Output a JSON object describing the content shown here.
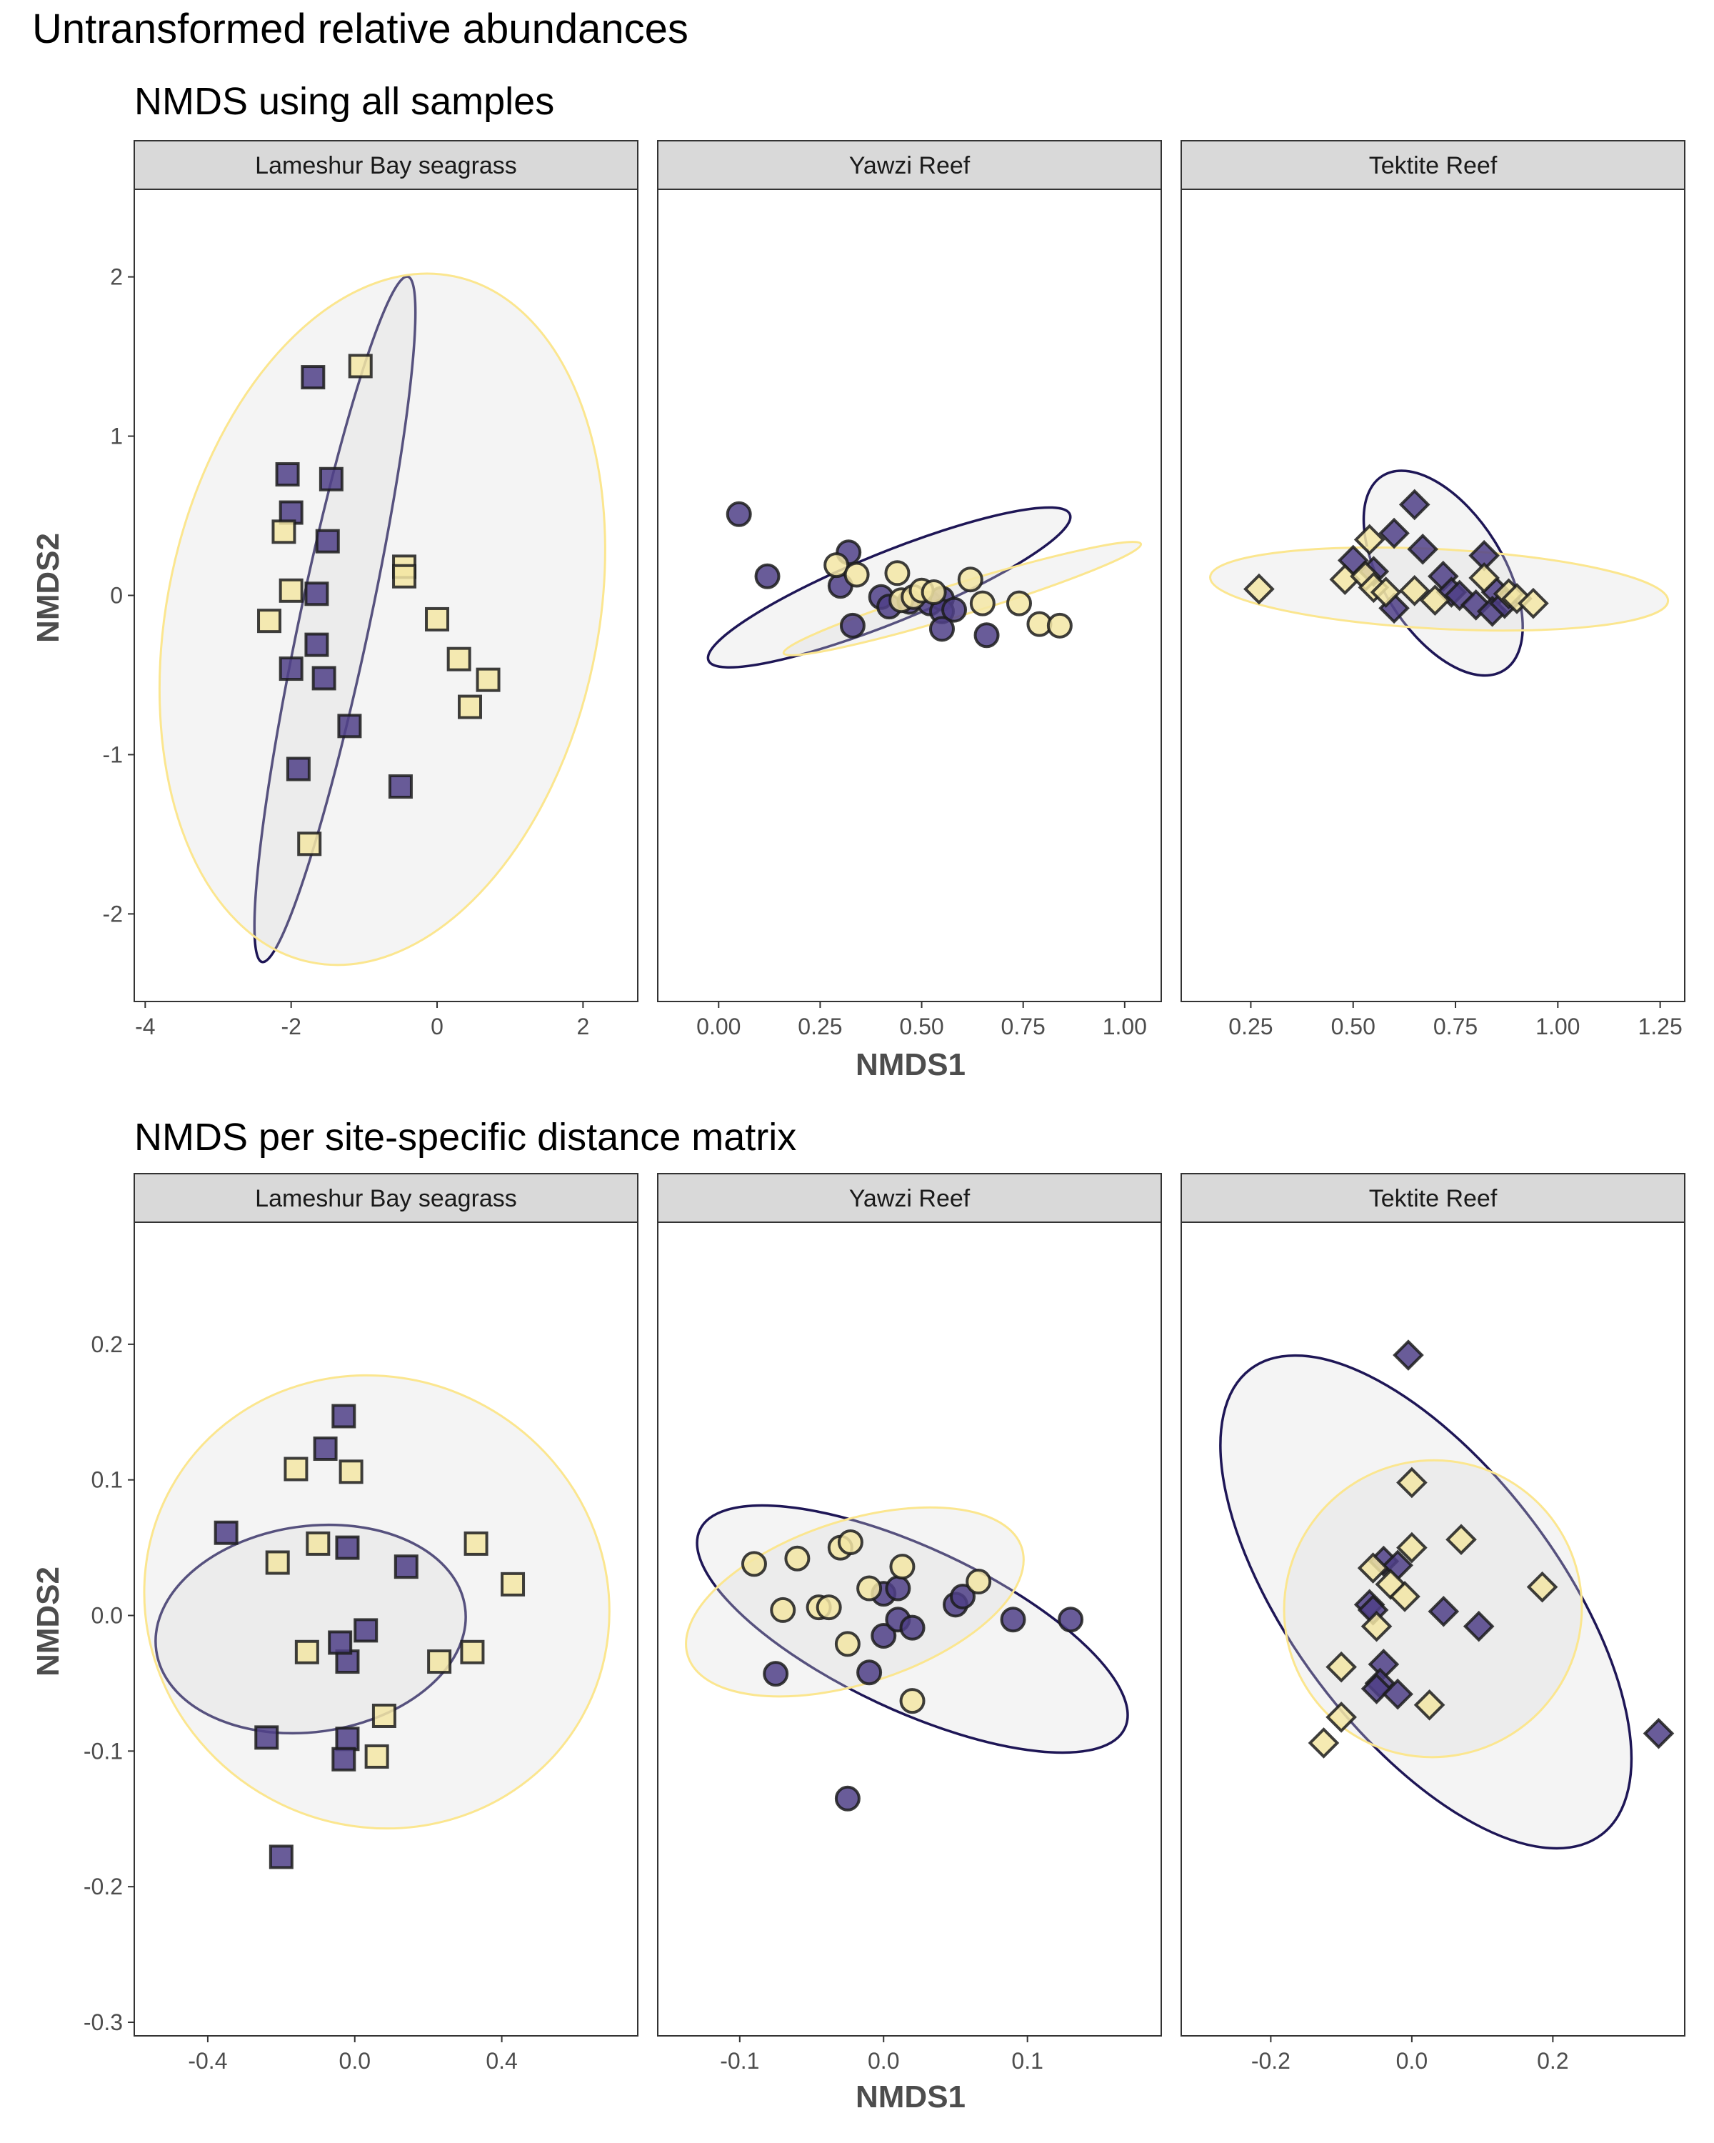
{
  "title": "Untransformed relative abundances",
  "colors": {
    "group_dark": "#1e1656",
    "group_dark_fill": "#4f4087",
    "group_light": "#fbe68f",
    "group_light_fill": "#f3e6a4",
    "ellipse_fill": "#d9d9d9",
    "strip_bg": "#d9d9d9",
    "panel_border": "#333333"
  },
  "sections": [
    {
      "subtitle": "NMDS using all samples",
      "xlabel": "NMDS1",
      "ylabel": "NMDS2",
      "ylim": [
        -2.55,
        2.55
      ],
      "yticks": [
        2,
        1,
        0,
        -1,
        -2
      ],
      "ytick_labels": [
        "2",
        "1",
        "0",
        "-1",
        "-2"
      ]
    },
    {
      "subtitle": "NMDS per site-specific distance matrix",
      "xlabel": "NMDS1",
      "ylabel": "NMDS2",
      "ylim": [
        -0.31,
        0.29
      ],
      "yticks": [
        0.2,
        0.1,
        0.0,
        -0.1,
        -0.2,
        -0.3
      ],
      "ytick_labels": [
        "0.2",
        "0.1",
        "0.0",
        "-0.1",
        "-0.2",
        "-0.3"
      ]
    }
  ],
  "chart_data": [
    {
      "type": "scatter",
      "section": 0,
      "facet": "Lameshur Bay seagrass",
      "shape": "square",
      "xlim": [
        -4.15,
        2.75
      ],
      "xticks": [
        -4,
        -2,
        0,
        2
      ],
      "xtick_labels": [
        "-4",
        "-2",
        "0",
        "2"
      ],
      "series": [
        {
          "group": "dark",
          "points": [
            [
              -1.7,
              1.37
            ],
            [
              -2.05,
              0.76
            ],
            [
              -2.0,
              0.52
            ],
            [
              -1.45,
              0.73
            ],
            [
              -1.5,
              0.34
            ],
            [
              -1.65,
              0.01
            ],
            [
              -1.65,
              -0.31
            ],
            [
              -1.55,
              -0.52
            ],
            [
              -2.0,
              -0.46
            ],
            [
              -1.2,
              -0.82
            ],
            [
              -1.9,
              -1.09
            ],
            [
              -0.5,
              -1.2
            ]
          ]
        },
        {
          "group": "light",
          "points": [
            [
              -1.05,
              1.44
            ],
            [
              -2.1,
              0.4
            ],
            [
              -2.0,
              0.03
            ],
            [
              -2.3,
              -0.16
            ],
            [
              -0.45,
              0.18
            ],
            [
              -0.45,
              0.12
            ],
            [
              0.0,
              -0.15
            ],
            [
              0.3,
              -0.4
            ],
            [
              0.7,
              -0.53
            ],
            [
              0.45,
              -0.7
            ],
            [
              -1.75,
              -1.56
            ]
          ]
        }
      ],
      "ellipses": [
        {
          "group": "dark",
          "cx": -1.4,
          "cy": -0.15,
          "rx": 0.48,
          "ry": 2.2,
          "angle": -12
        },
        {
          "group": "light",
          "cx": -0.75,
          "cy": -0.15,
          "rx": 2.95,
          "ry": 2.2,
          "angle": -12
        }
      ]
    },
    {
      "type": "scatter",
      "section": 0,
      "facet": "Yawzi Reef",
      "shape": "circle",
      "xlim": [
        -0.15,
        1.09
      ],
      "xticks": [
        0.0,
        0.25,
        0.5,
        0.75,
        1.0
      ],
      "xtick_labels": [
        "0.00",
        "0.25",
        "0.50",
        "0.75",
        "1.00"
      ],
      "series": [
        {
          "group": "dark",
          "points": [
            [
              0.05,
              0.51
            ],
            [
              0.12,
              0.12
            ],
            [
              0.3,
              0.06
            ],
            [
              0.32,
              0.27
            ],
            [
              0.4,
              -0.01
            ],
            [
              0.42,
              -0.07
            ],
            [
              0.33,
              -0.19
            ],
            [
              0.47,
              -0.04
            ],
            [
              0.52,
              -0.05
            ],
            [
              0.55,
              -0.02
            ],
            [
              0.55,
              -0.1
            ],
            [
              0.58,
              -0.09
            ],
            [
              0.55,
              -0.21
            ],
            [
              0.66,
              -0.25
            ]
          ]
        },
        {
          "group": "light",
          "points": [
            [
              0.29,
              0.19
            ],
            [
              0.34,
              0.13
            ],
            [
              0.44,
              0.14
            ],
            [
              0.45,
              -0.03
            ],
            [
              0.48,
              -0.01
            ],
            [
              0.5,
              0.03
            ],
            [
              0.53,
              0.02
            ],
            [
              0.62,
              0.1
            ],
            [
              0.65,
              -0.05
            ],
            [
              0.74,
              -0.05
            ],
            [
              0.79,
              -0.18
            ],
            [
              0.84,
              -0.19
            ]
          ]
        }
      ],
      "ellipses": [
        {
          "group": "dark",
          "cx": 0.42,
          "cy": 0.05,
          "rx": 0.48,
          "ry": 0.22,
          "angle": 22
        },
        {
          "group": "light",
          "cx": 0.6,
          "cy": -0.02,
          "rx": 0.46,
          "ry": 0.1,
          "angle": 17
        }
      ]
    },
    {
      "type": "scatter",
      "section": 0,
      "facet": "Tektite Reef",
      "shape": "diamond",
      "xlim": [
        0.08,
        1.31
      ],
      "xticks": [
        0.25,
        0.5,
        0.75,
        1.0,
        1.25
      ],
      "xtick_labels": [
        "0.25",
        "0.50",
        "0.75",
        "1.00",
        "1.25"
      ],
      "series": [
        {
          "group": "dark",
          "points": [
            [
              0.5,
              0.22
            ],
            [
              0.6,
              0.39
            ],
            [
              0.65,
              0.57
            ],
            [
              0.67,
              0.29
            ],
            [
              0.72,
              0.12
            ],
            [
              0.6,
              -0.08
            ],
            [
              0.74,
              0.02
            ],
            [
              0.76,
              0.0
            ],
            [
              0.82,
              0.25
            ],
            [
              0.85,
              0.02
            ],
            [
              0.8,
              -0.06
            ],
            [
              0.84,
              -0.1
            ],
            [
              0.87,
              -0.05
            ],
            [
              0.55,
              0.15
            ]
          ]
        },
        {
          "group": "light",
          "points": [
            [
              0.27,
              0.04
            ],
            [
              0.48,
              0.1
            ],
            [
              0.53,
              0.12
            ],
            [
              0.55,
              0.05
            ],
            [
              0.58,
              0.02
            ],
            [
              0.54,
              0.35
            ],
            [
              0.65,
              0.03
            ],
            [
              0.7,
              -0.03
            ],
            [
              0.82,
              0.11
            ],
            [
              0.88,
              0.01
            ],
            [
              0.9,
              -0.02
            ],
            [
              0.94,
              -0.05
            ]
          ]
        }
      ],
      "ellipses": [
        {
          "group": "dark",
          "cx": 0.72,
          "cy": 0.14,
          "rx": 0.28,
          "ry": 0.38,
          "angle": -58
        },
        {
          "group": "light",
          "cx": 0.71,
          "cy": 0.04,
          "rx": 0.56,
          "ry": 0.25,
          "angle": -3
        }
      ]
    },
    {
      "type": "scatter",
      "section": 1,
      "facet": "Lameshur Bay seagrass",
      "shape": "square",
      "xlim": [
        -0.6,
        0.77
      ],
      "xticks": [
        -0.4,
        0.0,
        0.4
      ],
      "xtick_labels": [
        "-0.4",
        "0.0",
        "0.4"
      ],
      "series": [
        {
          "group": "dark",
          "points": [
            [
              -0.03,
              0.147
            ],
            [
              -0.08,
              0.123
            ],
            [
              -0.35,
              0.061
            ],
            [
              -0.02,
              0.05
            ],
            [
              0.14,
              0.036
            ],
            [
              0.03,
              -0.011
            ],
            [
              -0.02,
              -0.034
            ],
            [
              -0.24,
              -0.09
            ],
            [
              -0.02,
              -0.091
            ],
            [
              -0.03,
              -0.106
            ],
            [
              -0.2,
              -0.178
            ],
            [
              -0.04,
              -0.02
            ]
          ]
        },
        {
          "group": "light",
          "points": [
            [
              -0.16,
              0.108
            ],
            [
              -0.01,
              0.106
            ],
            [
              -0.21,
              0.039
            ],
            [
              -0.1,
              0.053
            ],
            [
              0.33,
              0.053
            ],
            [
              0.43,
              0.023
            ],
            [
              -0.13,
              -0.027
            ],
            [
              0.32,
              -0.027
            ],
            [
              0.23,
              -0.034
            ],
            [
              0.08,
              -0.074
            ],
            [
              0.06,
              -0.104
            ]
          ]
        }
      ],
      "ellipses": [
        {
          "group": "dark",
          "cx": -0.12,
          "cy": -0.01,
          "rx": 0.28,
          "ry": 0.115,
          "angle": -82
        },
        {
          "group": "light",
          "cx": 0.06,
          "cy": 0.01,
          "rx": 0.64,
          "ry": 0.165,
          "angle": -29
        }
      ]
    },
    {
      "type": "scatter",
      "section": 1,
      "facet": "Yawzi Reef",
      "shape": "circle",
      "xlim": [
        -0.157,
        0.193
      ],
      "xticks": [
        -0.1,
        0.0,
        0.1
      ],
      "xtick_labels": [
        "-0.1",
        "0.0",
        "0.1"
      ],
      "series": [
        {
          "group": "dark",
          "points": [
            [
              0.0,
              0.016
            ],
            [
              0.01,
              0.02
            ],
            [
              0.0,
              -0.015
            ],
            [
              0.01,
              -0.003
            ],
            [
              0.02,
              -0.009
            ],
            [
              0.05,
              0.008
            ],
            [
              0.055,
              0.014
            ],
            [
              0.09,
              -0.003
            ],
            [
              0.13,
              -0.003
            ],
            [
              -0.075,
              -0.043
            ],
            [
              -0.01,
              -0.042
            ],
            [
              -0.025,
              -0.135
            ]
          ]
        },
        {
          "group": "light",
          "points": [
            [
              -0.09,
              0.038
            ],
            [
              -0.06,
              0.042
            ],
            [
              -0.03,
              0.05
            ],
            [
              -0.023,
              0.054
            ],
            [
              0.013,
              0.036
            ],
            [
              0.066,
              0.025
            ],
            [
              -0.07,
              0.004
            ],
            [
              -0.045,
              0.006
            ],
            [
              -0.038,
              0.006
            ],
            [
              -0.01,
              0.02
            ],
            [
              -0.025,
              -0.021
            ],
            [
              0.02,
              -0.063
            ]
          ]
        }
      ],
      "ellipses": [
        {
          "group": "dark",
          "cx": 0.02,
          "cy": -0.01,
          "rx": 0.163,
          "ry": 0.06,
          "angle": -25
        },
        {
          "group": "light",
          "cx": -0.02,
          "cy": 0.01,
          "rx": 0.122,
          "ry": 0.06,
          "angle": 18
        }
      ]
    },
    {
      "type": "scatter",
      "section": 1,
      "facet": "Tektite Reef",
      "shape": "diamond",
      "xlim": [
        -0.327,
        0.387
      ],
      "xticks": [
        -0.2,
        0.0,
        0.2
      ],
      "xtick_labels": [
        "-0.2",
        "0.0",
        "0.2"
      ],
      "series": [
        {
          "group": "dark",
          "points": [
            [
              -0.005,
              0.192
            ],
            [
              -0.04,
              0.04
            ],
            [
              -0.02,
              0.037
            ],
            [
              -0.06,
              0.008
            ],
            [
              -0.055,
              0.004
            ],
            [
              0.045,
              0.003
            ],
            [
              0.095,
              -0.008
            ],
            [
              -0.04,
              -0.036
            ],
            [
              -0.045,
              -0.05
            ],
            [
              -0.05,
              -0.054
            ],
            [
              -0.02,
              -0.058
            ],
            [
              0.35,
              -0.087
            ]
          ]
        },
        {
          "group": "light",
          "points": [
            [
              0.0,
              0.098
            ],
            [
              0.0,
              0.05
            ],
            [
              -0.055,
              0.035
            ],
            [
              0.07,
              0.056
            ],
            [
              -0.03,
              0.023
            ],
            [
              -0.01,
              0.014
            ],
            [
              0.185,
              0.021
            ],
            [
              -0.05,
              -0.008
            ],
            [
              -0.1,
              -0.038
            ],
            [
              -0.1,
              -0.075
            ],
            [
              0.025,
              -0.066
            ],
            [
              -0.125,
              -0.094
            ]
          ]
        }
      ],
      "ellipses": [
        {
          "group": "dark",
          "cx": 0.02,
          "cy": 0.01,
          "rx": 0.19,
          "ry": 0.215,
          "angle": 37
        },
        {
          "group": "light",
          "cx": 0.03,
          "cy": 0.005,
          "rx": 0.21,
          "ry": 0.11,
          "angle": -58
        }
      ]
    }
  ]
}
